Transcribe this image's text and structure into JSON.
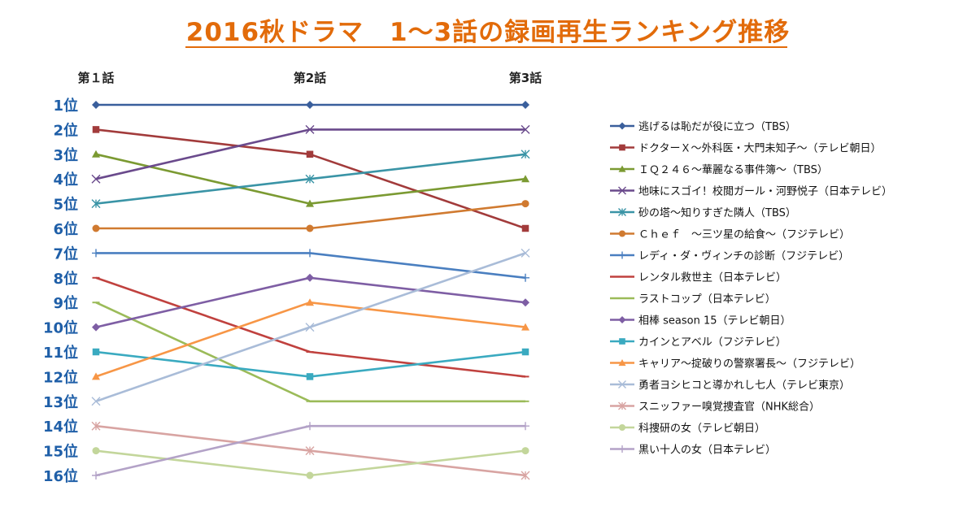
{
  "chart_data": {
    "type": "line",
    "title": "2016秋ドラマ　1～3話の録画再生ランキング推移",
    "categories": [
      "第１話",
      "第2話",
      "第3話"
    ],
    "y_labels": [
      "1位",
      "2位",
      "3位",
      "4位",
      "5位",
      "6位",
      "7位",
      "8位",
      "9位",
      "10位",
      "11位",
      "12位",
      "13位",
      "14位",
      "15位",
      "16位"
    ],
    "ylim": [
      1,
      16
    ],
    "y_inverted": true,
    "legend_position": "right",
    "grid": false,
    "series": [
      {
        "name": "逃げるは恥だが役に立つ（TBS）",
        "values": [
          1,
          1,
          1
        ],
        "color": "#3a5f9c",
        "marker": "diamond"
      },
      {
        "name": "ドクターＸ～外科医・大門未知子～（テレビ朝日）",
        "values": [
          2,
          3,
          6
        ],
        "color": "#a23b3b",
        "marker": "square"
      },
      {
        "name": "ＩＱ２４６～華麗なる事件簿～（TBS）",
        "values": [
          3,
          5,
          4
        ],
        "color": "#7b9a32",
        "marker": "triangle"
      },
      {
        "name": "地味にスゴイ！校閲ガール・河野悦子（日本テレビ）",
        "values": [
          4,
          2,
          2
        ],
        "color": "#6a4a8c",
        "marker": "x"
      },
      {
        "name": "砂の塔～知りすぎた隣人（TBS）",
        "values": [
          5,
          4,
          3
        ],
        "color": "#3a94a6",
        "marker": "star"
      },
      {
        "name": "Ｃｈｅｆ　～三ツ星の給食～（フジテレビ）",
        "values": [
          6,
          6,
          5
        ],
        "color": "#d07a30",
        "marker": "circle"
      },
      {
        "name": "レディ・ダ・ヴィンチの診断（フジテレビ）",
        "values": [
          7,
          7,
          8
        ],
        "color": "#4a7fc0",
        "marker": "plus"
      },
      {
        "name": "レンタル救世主（日本テレビ）",
        "values": [
          8,
          11,
          12
        ],
        "color": "#c0413e",
        "marker": "dash"
      },
      {
        "name": "ラストコップ（日本テレビ）",
        "values": [
          9,
          13,
          13
        ],
        "color": "#9bbb59",
        "marker": "dash"
      },
      {
        "name": "相棒 season 15（テレビ朝日）",
        "values": [
          10,
          8,
          9
        ],
        "color": "#7e5ea4",
        "marker": "diamond"
      },
      {
        "name": "カインとアベル（フジテレビ）",
        "values": [
          11,
          12,
          11
        ],
        "color": "#3aaac0",
        "marker": "square"
      },
      {
        "name": "キャリア～掟破りの警察署長～（フジテレビ）",
        "values": [
          12,
          9,
          10
        ],
        "color": "#f79646",
        "marker": "triangle"
      },
      {
        "name": "勇者ヨシヒコと導かれし七人（テレビ東京）",
        "values": [
          13,
          10,
          7
        ],
        "color": "#a9bcd8",
        "marker": "x"
      },
      {
        "name": "スニッファー嗅覚捜査官（NHK総合）",
        "values": [
          14,
          15,
          16
        ],
        "color": "#d8a4a2",
        "marker": "star"
      },
      {
        "name": "科捜研の女（テレビ朝日）",
        "values": [
          15,
          16,
          15
        ],
        "color": "#c3d69b",
        "marker": "circle"
      },
      {
        "name": "黒い十人の女（日本テレビ）",
        "values": [
          16,
          14,
          14
        ],
        "color": "#b3a2c7",
        "marker": "plus"
      }
    ]
  }
}
